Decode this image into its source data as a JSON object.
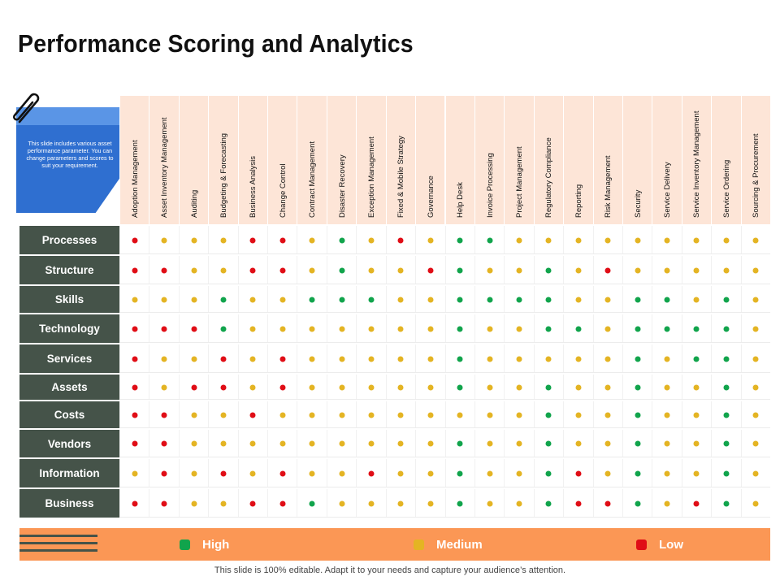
{
  "title": "Performance Scoring and Analytics",
  "note": "This slide includes various asset performance parameter. You can change parameters and scores to suit your requirement.",
  "columns": [
    "Adoption Management",
    "Asset Inventory Management",
    "Auditing",
    "Budgeting & Forecasting",
    "Business Analysis",
    "Change Control",
    "Contract Management",
    "Disaster Recovery",
    "Exception Management",
    "Fixed & Mobile Strategy",
    "Governance",
    "Help Desk",
    "Invoice Processing",
    "Project Management",
    "Regulatory Compliance",
    "Reporting",
    "Risk Management",
    "Security",
    "Service Delivery",
    "Service Inventory Management",
    "Service Ordering",
    "Sourcing & Procurement"
  ],
  "colors": {
    "H": "#11a44c",
    "M": "#e4b423",
    "L": "#e00d16"
  },
  "rows": [
    {
      "label": "Processes",
      "scores": [
        "L",
        "M",
        "M",
        "M",
        "L",
        "L",
        "M",
        "H",
        "M",
        "L",
        "M",
        "H",
        "H",
        "M",
        "M",
        "M",
        "M",
        "M",
        "M",
        "M",
        "M",
        "M"
      ]
    },
    {
      "label": "Structure",
      "scores": [
        "L",
        "L",
        "M",
        "M",
        "L",
        "L",
        "M",
        "H",
        "M",
        "M",
        "L",
        "H",
        "M",
        "M",
        "H",
        "M",
        "L",
        "M",
        "M",
        "M",
        "M",
        "M"
      ]
    },
    {
      "label": "Skills",
      "scores": [
        "M",
        "M",
        "M",
        "H",
        "M",
        "M",
        "H",
        "H",
        "H",
        "M",
        "M",
        "H",
        "H",
        "H",
        "H",
        "M",
        "M",
        "H",
        "H",
        "M",
        "H",
        "M"
      ]
    },
    {
      "label": "Technology",
      "scores": [
        "L",
        "L",
        "L",
        "H",
        "M",
        "M",
        "M",
        "M",
        "M",
        "M",
        "M",
        "H",
        "M",
        "M",
        "H",
        "H",
        "M",
        "H",
        "H",
        "H",
        "H",
        "M"
      ]
    },
    {
      "label": "Services",
      "scores": [
        "L",
        "M",
        "M",
        "L",
        "M",
        "L",
        "M",
        "M",
        "M",
        "M",
        "M",
        "H",
        "M",
        "M",
        "M",
        "M",
        "M",
        "H",
        "M",
        "H",
        "H",
        "M"
      ]
    },
    {
      "label": "Assets",
      "scores": [
        "L",
        "M",
        "L",
        "L",
        "M",
        "L",
        "M",
        "M",
        "M",
        "M",
        "M",
        "H",
        "M",
        "M",
        "H",
        "M",
        "M",
        "H",
        "M",
        "M",
        "H",
        "M"
      ]
    },
    {
      "label": "Costs",
      "scores": [
        "L",
        "L",
        "M",
        "M",
        "L",
        "M",
        "M",
        "M",
        "M",
        "M",
        "M",
        "M",
        "M",
        "M",
        "H",
        "M",
        "M",
        "H",
        "M",
        "M",
        "H",
        "M"
      ]
    },
    {
      "label": "Vendors",
      "scores": [
        "L",
        "L",
        "M",
        "M",
        "M",
        "M",
        "M",
        "M",
        "M",
        "M",
        "M",
        "H",
        "M",
        "M",
        "H",
        "M",
        "M",
        "H",
        "M",
        "M",
        "H",
        "M"
      ]
    },
    {
      "label": "Information",
      "scores": [
        "M",
        "L",
        "M",
        "L",
        "M",
        "L",
        "M",
        "M",
        "L",
        "M",
        "M",
        "H",
        "M",
        "M",
        "H",
        "L",
        "M",
        "H",
        "M",
        "M",
        "H",
        "M"
      ]
    },
    {
      "label": "Business",
      "scores": [
        "L",
        "L",
        "M",
        "M",
        "L",
        "L",
        "H",
        "M",
        "M",
        "M",
        "M",
        "H",
        "M",
        "M",
        "H",
        "L",
        "L",
        "H",
        "M",
        "L",
        "H",
        "M"
      ]
    }
  ],
  "legend": [
    {
      "label": "High",
      "color": "#11a44c"
    },
    {
      "label": "Medium",
      "color": "#e4b423"
    },
    {
      "label": "Low",
      "color": "#e00d16"
    }
  ],
  "footer": "This slide is 100% editable. Adapt it to your needs and capture your audience’s attention."
}
